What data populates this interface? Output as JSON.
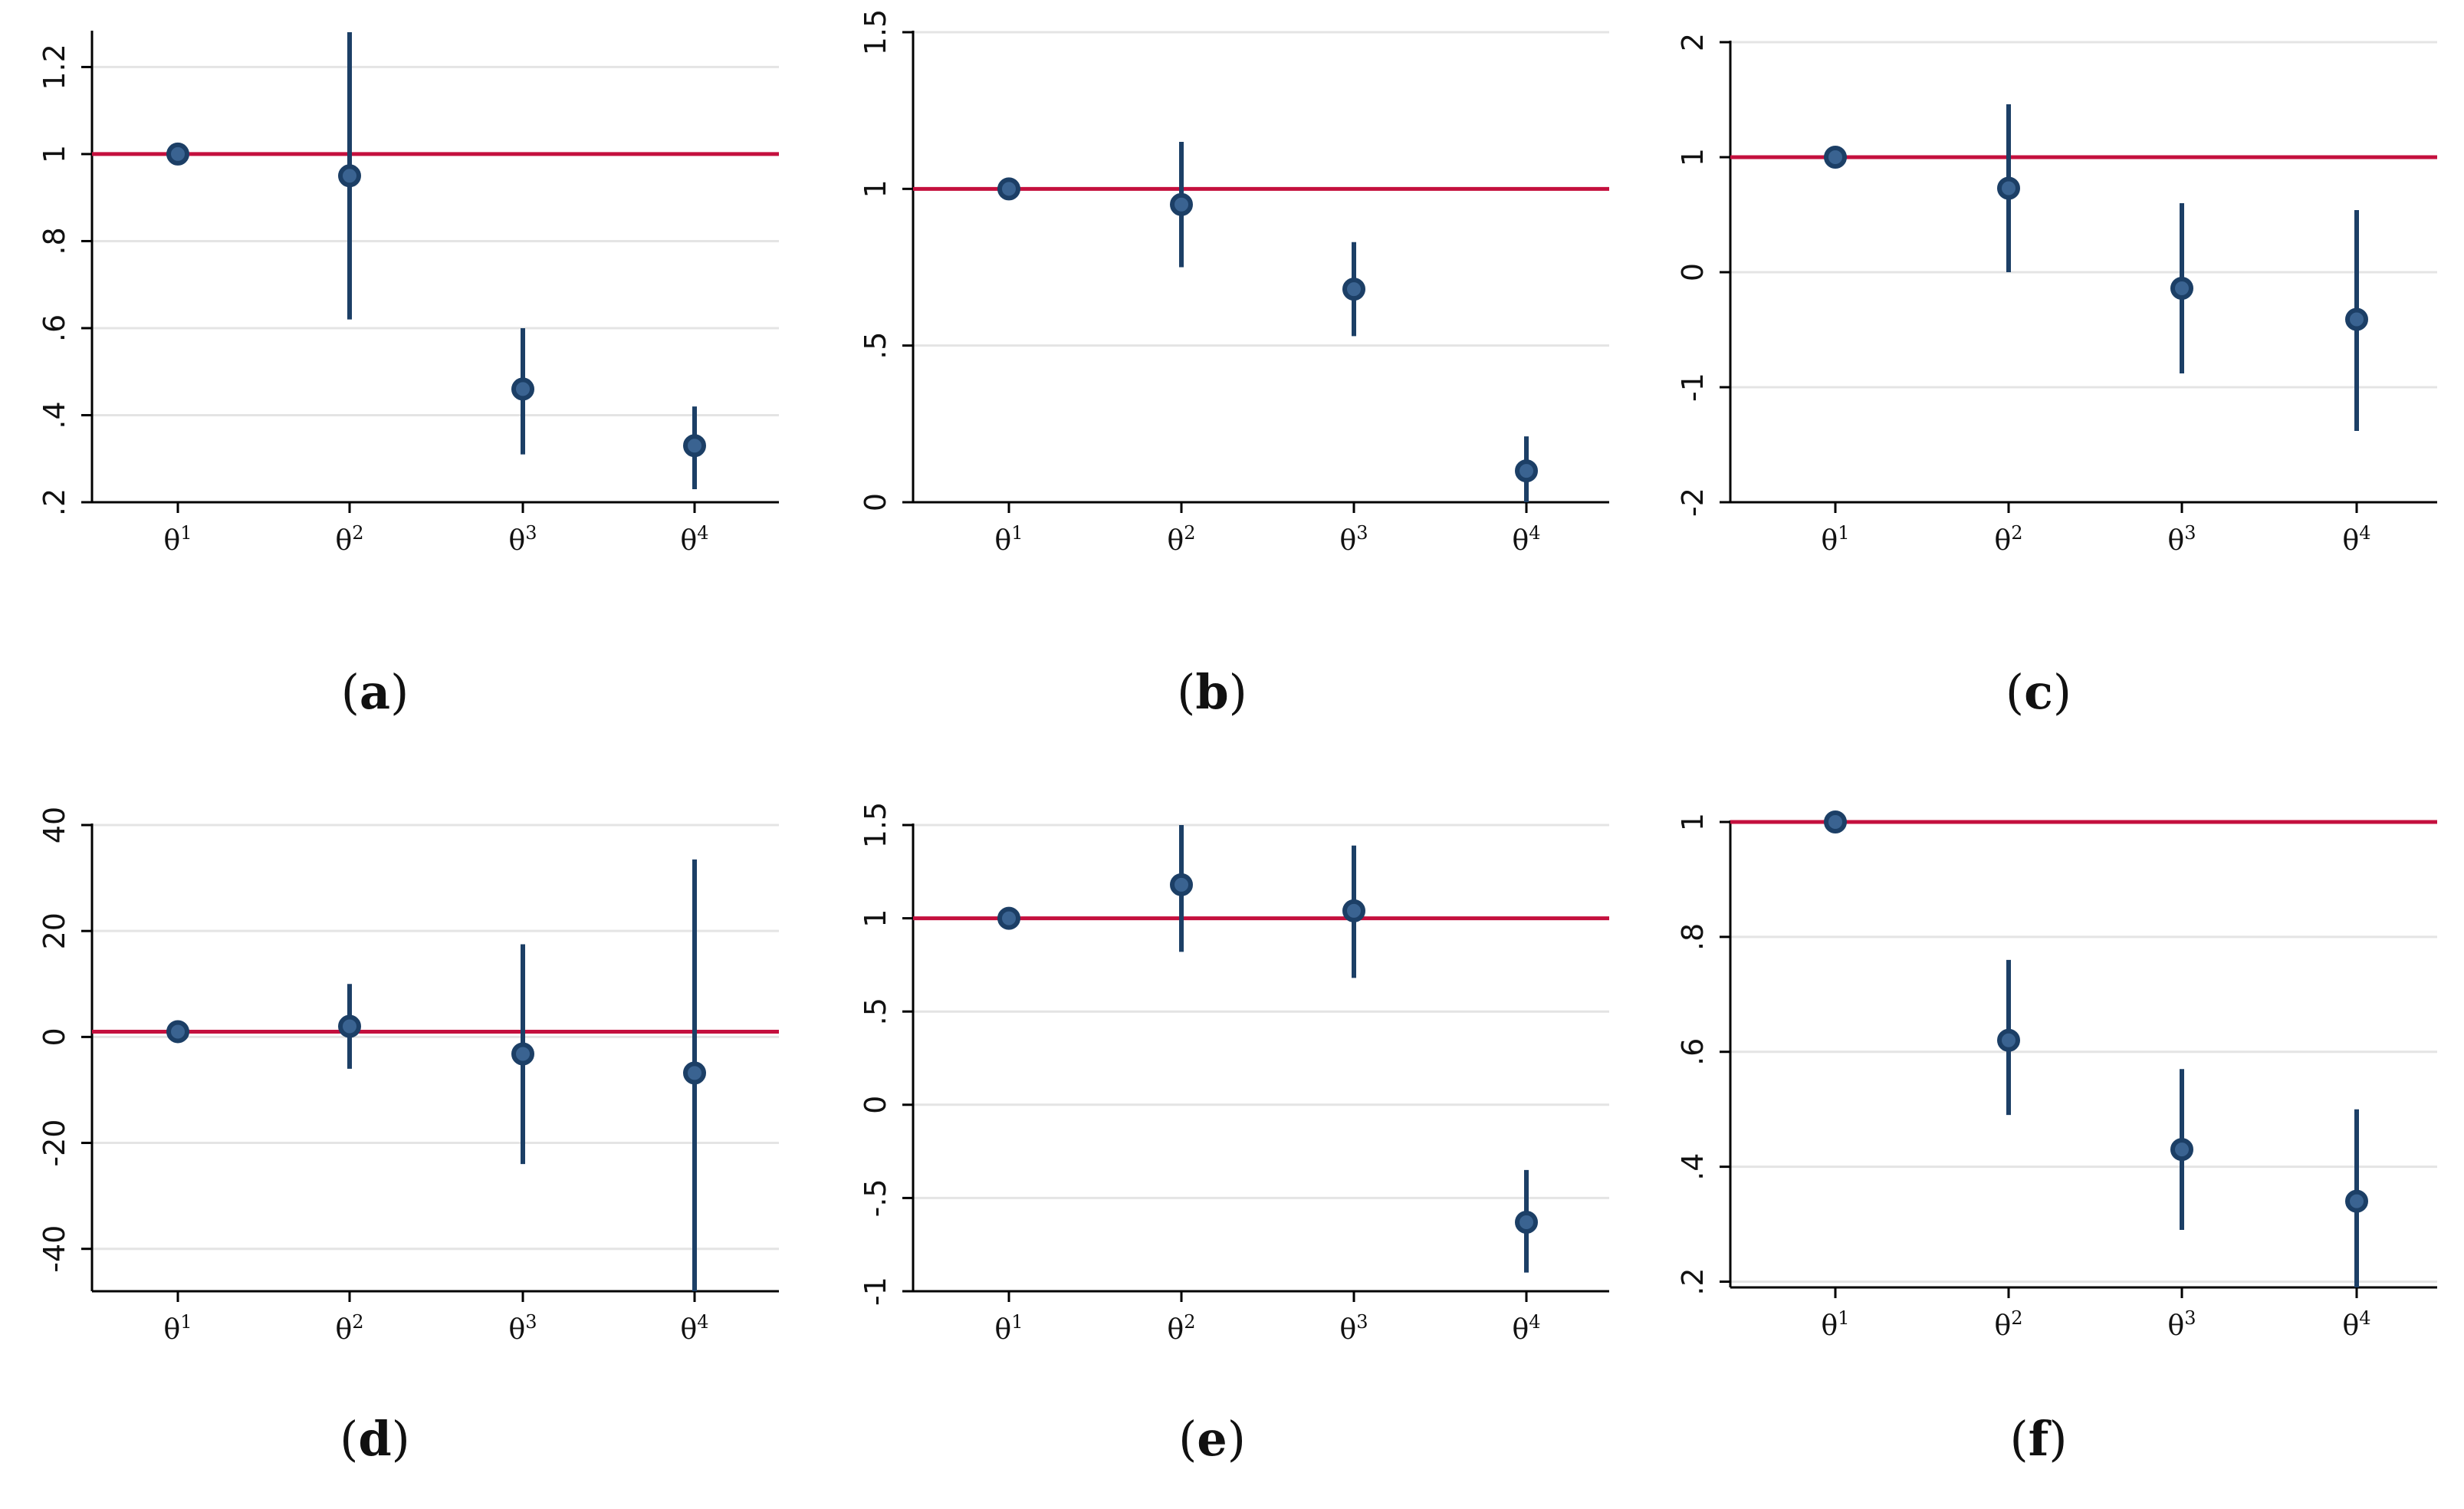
{
  "colors": {
    "reference_line": "#c4103e",
    "marker": "#1c3f66",
    "marker_fill": "#3a6391",
    "grid": "#e4e4e4",
    "axis": "#000000"
  },
  "chart_data": [
    {
      "type": "scatter",
      "panel_label": "a",
      "caption": {
        "open": "(",
        "label": "a",
        "close": ")"
      },
      "categories": [
        {
          "base": "θ",
          "sup": "1"
        },
        {
          "base": "θ",
          "sup": "2"
        },
        {
          "base": "θ",
          "sup": "3"
        },
        {
          "base": "θ",
          "sup": "4"
        }
      ],
      "estimates": [
        1.0,
        0.95,
        0.46,
        0.33
      ],
      "ci_lower": [
        1.0,
        0.62,
        0.31,
        0.23
      ],
      "ci_upper": [
        1.0,
        1.28,
        0.6,
        0.42
      ],
      "reference_line": 1,
      "ylim": [
        0.2,
        1.28
      ],
      "yticks": [
        0.2,
        0.4,
        0.6,
        0.8,
        1,
        1.2
      ],
      "ytick_labels": [
        ".2",
        ".4",
        ".6",
        ".8",
        "1",
        "1.2"
      ],
      "grid": true
    },
    {
      "type": "scatter",
      "panel_label": "b",
      "caption": {
        "open": "(",
        "label": "b",
        "close": ")"
      },
      "categories": [
        {
          "base": "θ",
          "sup": "1"
        },
        {
          "base": "θ",
          "sup": "2"
        },
        {
          "base": "θ",
          "sup": "3"
        },
        {
          "base": "θ",
          "sup": "4"
        }
      ],
      "estimates": [
        1.0,
        0.95,
        0.68,
        0.1
      ],
      "ci_lower": [
        1.0,
        0.75,
        0.53,
        0.0
      ],
      "ci_upper": [
        1.0,
        1.15,
        0.83,
        0.21
      ],
      "reference_line": 1,
      "ylim": [
        0,
        1.5
      ],
      "yticks": [
        0,
        0.5,
        1,
        1.5
      ],
      "ytick_labels": [
        "0",
        ".5",
        "1",
        "1.5"
      ],
      "grid": true
    },
    {
      "type": "scatter",
      "panel_label": "c",
      "caption": {
        "open": "(",
        "label": "c",
        "close": ")"
      },
      "categories": [
        {
          "base": "θ",
          "sup": "1"
        },
        {
          "base": "θ",
          "sup": "2"
        },
        {
          "base": "θ",
          "sup": "3"
        },
        {
          "base": "θ",
          "sup": "4"
        }
      ],
      "estimates": [
        1.0,
        0.73,
        -0.14,
        -0.41
      ],
      "ci_lower": [
        1.0,
        0.0,
        -0.88,
        -1.38
      ],
      "ci_upper": [
        1.0,
        1.46,
        0.6,
        0.54
      ],
      "reference_line": 1,
      "ylim": [
        -2,
        2
      ],
      "yticks": [
        -2,
        -1,
        0,
        1,
        2
      ],
      "ytick_labels": [
        "-2",
        "-1",
        "0",
        "1",
        "2"
      ],
      "grid": true
    },
    {
      "type": "scatter",
      "panel_label": "d",
      "caption": {
        "open": "(",
        "label": "d",
        "close": ")"
      },
      "categories": [
        {
          "base": "θ",
          "sup": "1"
        },
        {
          "base": "θ",
          "sup": "2"
        },
        {
          "base": "θ",
          "sup": "3"
        },
        {
          "base": "θ",
          "sup": "4"
        }
      ],
      "estimates": [
        1.0,
        2.0,
        -3.2,
        -6.8
      ],
      "ci_lower": [
        1.0,
        -6.0,
        -24.0,
        -48.0
      ],
      "ci_upper": [
        1.0,
        10.0,
        17.5,
        33.5
      ],
      "reference_line": 1,
      "ylim": [
        -48,
        40
      ],
      "yticks": [
        -40,
        -20,
        0,
        20,
        40
      ],
      "ytick_labels": [
        "-40",
        "-20",
        "0",
        "20",
        "40"
      ],
      "grid": true
    },
    {
      "type": "scatter",
      "panel_label": "e",
      "caption": {
        "open": "(",
        "label": "e",
        "close": ")"
      },
      "categories": [
        {
          "base": "θ",
          "sup": "1"
        },
        {
          "base": "θ",
          "sup": "2"
        },
        {
          "base": "θ",
          "sup": "3"
        },
        {
          "base": "θ",
          "sup": "4"
        }
      ],
      "estimates": [
        1.0,
        1.18,
        1.04,
        -0.63
      ],
      "ci_lower": [
        1.0,
        0.82,
        0.68,
        -0.9
      ],
      "ci_upper": [
        1.0,
        1.53,
        1.39,
        -0.35
      ],
      "reference_line": 1,
      "ylim": [
        -1,
        1.5
      ],
      "yticks": [
        -1,
        -0.5,
        0,
        0.5,
        1,
        1.5
      ],
      "ytick_labels": [
        "-1",
        "-.5",
        "0",
        ".5",
        "1",
        "1.5"
      ],
      "grid": true
    },
    {
      "type": "scatter",
      "panel_label": "f",
      "caption": {
        "open": "(",
        "label": "f",
        "close": ")"
      },
      "categories": [
        {
          "base": "θ",
          "sup": "1"
        },
        {
          "base": "θ",
          "sup": "2"
        },
        {
          "base": "θ",
          "sup": "3"
        },
        {
          "base": "θ",
          "sup": "4"
        }
      ],
      "estimates": [
        1.0,
        0.62,
        0.43,
        0.34
      ],
      "ci_lower": [
        1.0,
        0.49,
        0.29,
        0.17
      ],
      "ci_upper": [
        1.0,
        0.76,
        0.57,
        0.5
      ],
      "reference_line": 1,
      "ylim": [
        0.19,
        1.0
      ],
      "yticks": [
        0.2,
        0.4,
        0.6,
        0.8,
        1
      ],
      "ytick_labels": [
        ".2",
        ".4",
        ".6",
        ".8",
        "1"
      ],
      "grid": true
    }
  ]
}
